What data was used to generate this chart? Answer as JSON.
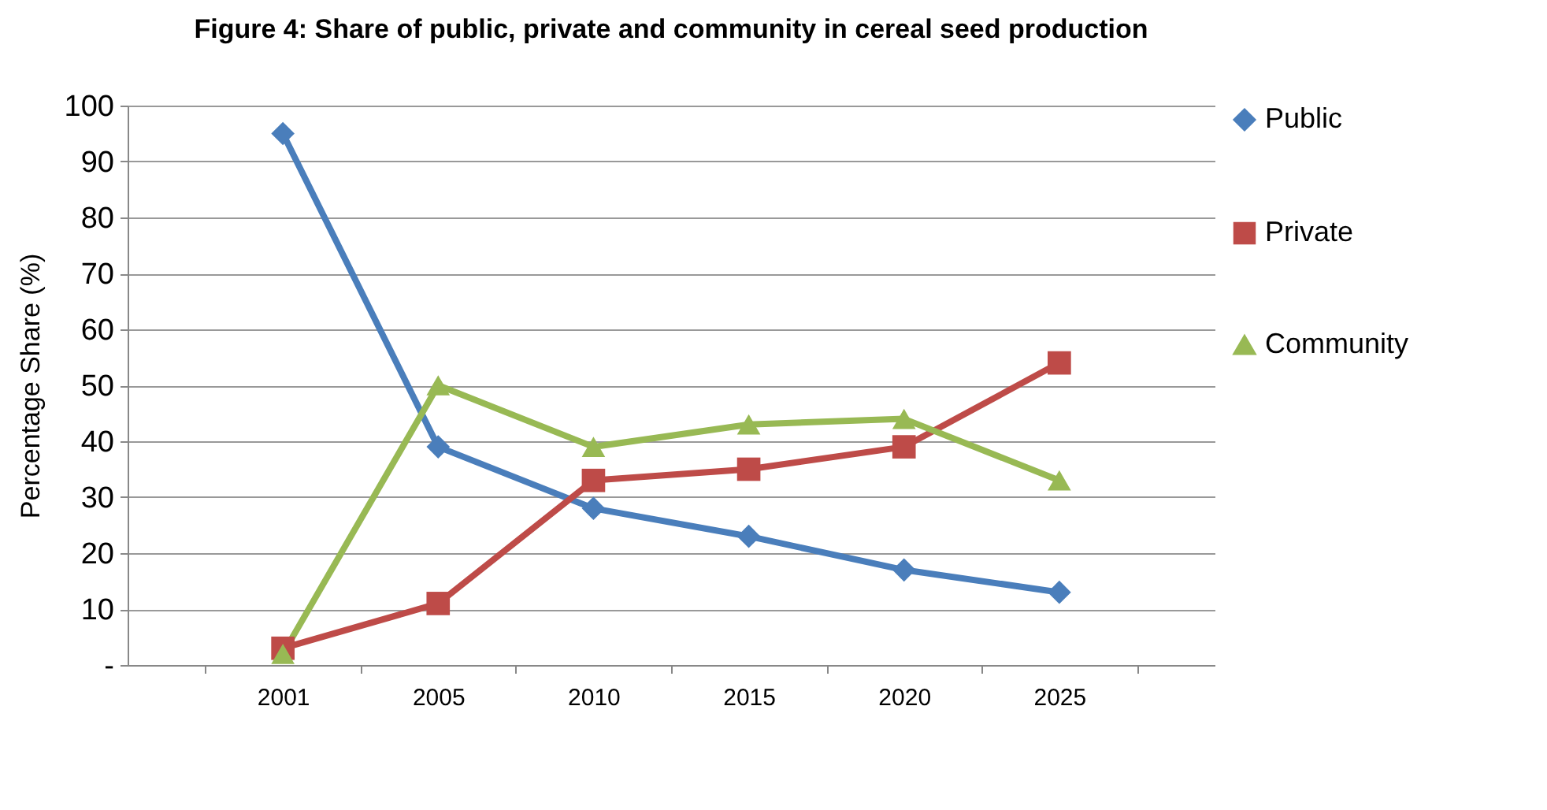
{
  "chart_data": {
    "type": "line",
    "title": "Figure 4: Share of public, private and community in cereal seed production",
    "ylabel": "Percentage Share (%)",
    "categories": [
      "2001",
      "2005",
      "2010",
      "2015",
      "2020",
      "2025"
    ],
    "series": [
      {
        "name": "Public",
        "color": "#4a7ebb",
        "marker": "diamond",
        "values": [
          95,
          39,
          28,
          23,
          17,
          13
        ]
      },
      {
        "name": "Private",
        "color": "#be4b48",
        "marker": "square",
        "values": [
          3,
          11,
          33,
          35,
          39,
          54
        ]
      },
      {
        "name": "Community",
        "color": "#98b954",
        "marker": "triangle",
        "values": [
          2,
          50,
          39,
          43,
          44,
          33
        ]
      }
    ],
    "ylim": [
      0,
      100
    ],
    "yticks": [
      {
        "value": 0,
        "label": "-"
      },
      10,
      20,
      30,
      40,
      50,
      60,
      70,
      80,
      90,
      100
    ],
    "grid": "y",
    "legend": "right"
  }
}
